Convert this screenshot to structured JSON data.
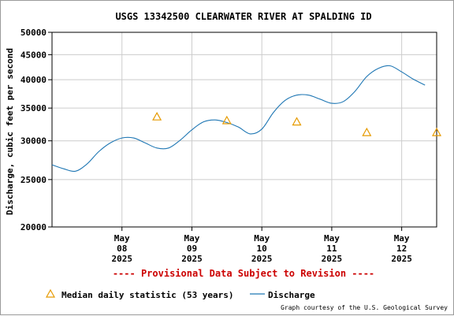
{
  "chart_data": {
    "type": "line",
    "title": "USGS 13342500 CLEARWATER RIVER AT SPALDING ID",
    "ylabel": "Discharge, cubic feet per second",
    "xlabel": "",
    "y_scale": "log",
    "ylim": [
      20000,
      50000
    ],
    "xlim": [
      "2025-05-07T00:00",
      "2025-05-12T12:00"
    ],
    "y_ticks": [
      20000,
      25000,
      30000,
      35000,
      40000,
      45000,
      50000
    ],
    "y_tick_labels": [
      "20000",
      "25000",
      "30000",
      "35000",
      "40000",
      "45000",
      "50000"
    ],
    "x_ticks": [
      "2025-05-08T00:00",
      "2025-05-09T00:00",
      "2025-05-10T00:00",
      "2025-05-11T00:00",
      "2025-05-12T00:00"
    ],
    "x_tick_labels": [
      [
        "May",
        "08",
        "2025"
      ],
      [
        "May",
        "09",
        "2025"
      ],
      [
        "May",
        "10",
        "2025"
      ],
      [
        "May",
        "11",
        "2025"
      ],
      [
        "May",
        "12",
        "2025"
      ]
    ],
    "grid": true,
    "provisional_note": "---- Provisional Data Subject to Revision ----",
    "credit": "Graph courtesy of the U.S. Geological Survey",
    "legend": {
      "position": "bottom",
      "items": [
        {
          "label": "Median daily statistic (53 years)",
          "symbol": "triangle",
          "color": "#e69a00"
        },
        {
          "label": "Discharge",
          "symbol": "line",
          "color": "#1f77b4"
        }
      ]
    },
    "series": [
      {
        "name": "Discharge",
        "color": "#1f77b4",
        "x": [
          "2025-05-07T00:00",
          "2025-05-07T04:00",
          "2025-05-07T08:00",
          "2025-05-07T12:00",
          "2025-05-07T16:00",
          "2025-05-07T20:00",
          "2025-05-08T00:00",
          "2025-05-08T04:00",
          "2025-05-08T08:00",
          "2025-05-08T12:00",
          "2025-05-08T16:00",
          "2025-05-08T20:00",
          "2025-05-09T00:00",
          "2025-05-09T04:00",
          "2025-05-09T08:00",
          "2025-05-09T12:00",
          "2025-05-09T16:00",
          "2025-05-09T20:00",
          "2025-05-10T00:00",
          "2025-05-10T04:00",
          "2025-05-10T08:00",
          "2025-05-10T12:00",
          "2025-05-10T16:00",
          "2025-05-10T20:00",
          "2025-05-11T00:00",
          "2025-05-11T04:00",
          "2025-05-11T08:00",
          "2025-05-11T12:00",
          "2025-05-11T16:00",
          "2025-05-11T20:00",
          "2025-05-12T00:00",
          "2025-05-12T04:00",
          "2025-05-12T08:00"
        ],
        "values": [
          26800,
          26300,
          26000,
          26900,
          28500,
          29700,
          30400,
          30400,
          29700,
          29000,
          29000,
          30100,
          31600,
          32800,
          33100,
          32700,
          32000,
          31000,
          31700,
          34300,
          36300,
          37200,
          37200,
          36500,
          35800,
          36100,
          37900,
          40600,
          42200,
          42700,
          41500,
          40100,
          39000
        ]
      },
      {
        "name": "Median daily statistic (53 years)",
        "color": "#e69a00",
        "x": [
          "2025-05-08T12:00",
          "2025-05-09T12:00",
          "2025-05-10T12:00",
          "2025-05-11T12:00",
          "2025-05-12T12:00"
        ],
        "values": [
          33600,
          33000,
          32800,
          31200,
          31200
        ]
      }
    ]
  }
}
